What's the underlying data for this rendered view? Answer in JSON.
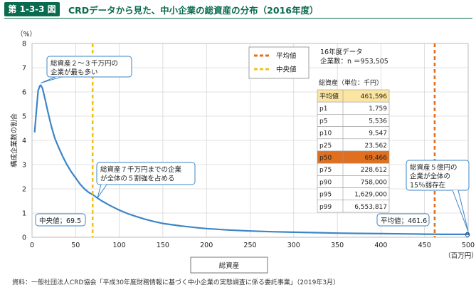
{
  "header": {
    "tag": "第 1-3-3 図",
    "title": "CRDデータから見た、中小企業の総資産の分布（2016年度）"
  },
  "source": "資料：一般社団法人CRD協会「平成30年度財務情報に基づく中小企業の実態調査に係る委託事業」（2019年3月）",
  "chart_data": {
    "type": "line",
    "title": "",
    "xlabel": "総資産",
    "xunit": "（百万円）",
    "ylabel": "構成企業数の割合",
    "yunit": "（%）",
    "xlim": [
      0,
      500
    ],
    "ylim": [
      0,
      8
    ],
    "xticks": [
      0,
      50,
      100,
      150,
      200,
      250,
      300,
      350,
      400,
      450,
      500
    ],
    "yticks": [
      0,
      1,
      2,
      3,
      4,
      5,
      6,
      7,
      8
    ],
    "grid": true,
    "colors": {
      "series": "#3d85c6",
      "mean": "#e07020",
      "median": "#f2c21b",
      "callout_border": "#3d85c6",
      "median_row": "#fbe5a0",
      "mean_row": "#e07020",
      "header": "#0b6b4f"
    },
    "series": [
      {
        "x": [
          3,
          5,
          7,
          9,
          10,
          12,
          15,
          18,
          22,
          26,
          30,
          35,
          40,
          45,
          50,
          55,
          60,
          65,
          70,
          75,
          80,
          90,
          100,
          110,
          120,
          130,
          140,
          150,
          170,
          190,
          200,
          225,
          250,
          275,
          300,
          325,
          350,
          375,
          400,
          425,
          450,
          475,
          500
        ],
        "y": [
          4.35,
          5.2,
          6.05,
          6.25,
          6.28,
          6.15,
          5.7,
          5.2,
          4.6,
          4.1,
          3.75,
          3.35,
          3.0,
          2.7,
          2.45,
          2.2,
          2.0,
          1.85,
          1.75,
          1.62,
          1.5,
          1.3,
          1.12,
          0.97,
          0.85,
          0.74,
          0.65,
          0.57,
          0.47,
          0.39,
          0.36,
          0.3,
          0.26,
          0.23,
          0.21,
          0.19,
          0.17,
          0.16,
          0.15,
          0.14,
          0.13,
          0.12,
          0.12
        ]
      }
    ],
    "legend": [
      {
        "label": "平均値",
        "style": "mean"
      },
      {
        "label": "中央値",
        "style": "median"
      }
    ],
    "vlines": [
      {
        "name": "median",
        "x": 69.5,
        "label": "中央値；69.5"
      },
      {
        "name": "mean",
        "x": 461.6,
        "label": "平均値；461.6"
      }
    ],
    "annotations": [
      {
        "lines": [
          "総資産２～３千万円の",
          "企業が最も多い"
        ]
      },
      {
        "lines": [
          "総資産７千万円までの企業",
          "が全体の５割強を占める"
        ]
      },
      {
        "lines": [
          "総資産５億円の",
          "企業が全体の",
          "15％弱存在"
        ]
      }
    ],
    "info": {
      "line1": "16年度データ",
      "line2": "企業数：n ＝953,505"
    },
    "table": {
      "header": "総資産（単位：千円）",
      "rows": [
        {
          "label": "平均値",
          "value": "461,596",
          "style": "median_row"
        },
        {
          "label": "p1",
          "value": "1,759",
          "style": ""
        },
        {
          "label": "p5",
          "value": "5,536",
          "style": ""
        },
        {
          "label": "p10",
          "value": "9,547",
          "style": ""
        },
        {
          "label": "p25",
          "value": "23,562",
          "style": ""
        },
        {
          "label": "p50",
          "value": "69,466",
          "style": "mean_row"
        },
        {
          "label": "p75",
          "value": "228,612",
          "style": ""
        },
        {
          "label": "p90",
          "value": "758,000",
          "style": ""
        },
        {
          "label": "p95",
          "value": "1,629,000",
          "style": ""
        },
        {
          "label": "p99",
          "value": "6,553,817",
          "style": ""
        }
      ]
    }
  }
}
